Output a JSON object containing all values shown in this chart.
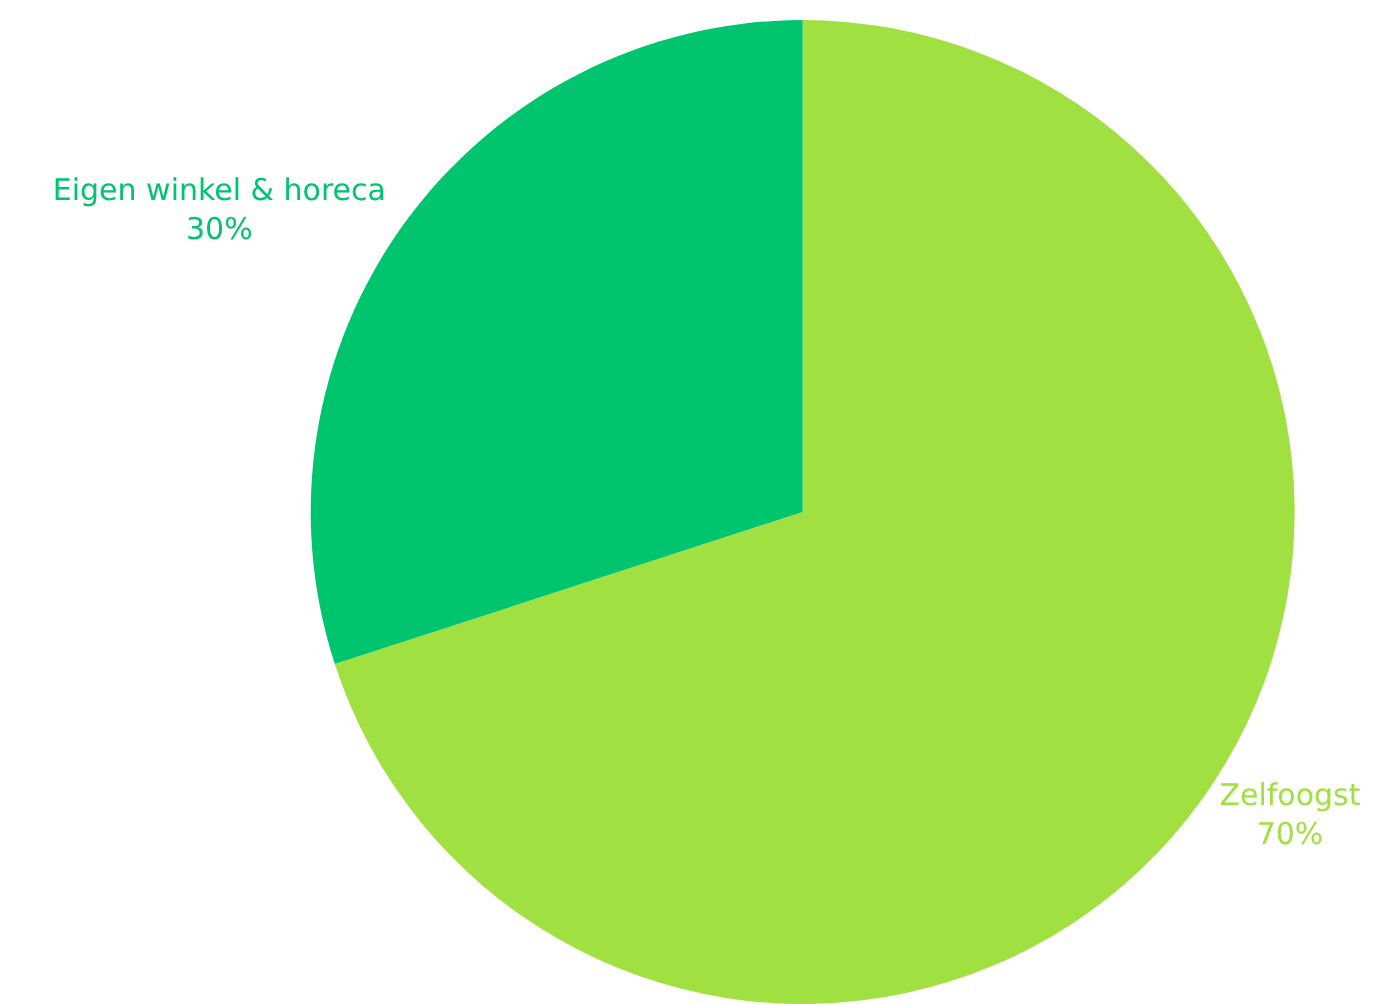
{
  "chart_data": {
    "type": "pie",
    "categories": [
      "Zelfoogst",
      "Eigen winkel & horeca"
    ],
    "values": [
      70,
      30
    ],
    "colors": [
      "#a0e040",
      "#00c46e"
    ],
    "value_labels": [
      "70%",
      "30%"
    ]
  }
}
